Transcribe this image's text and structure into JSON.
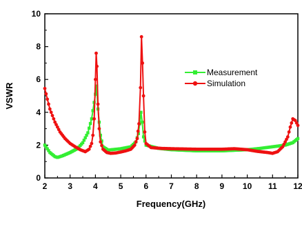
{
  "chart_data": {
    "type": "line",
    "xlabel": "Frequency(GHz)",
    "ylabel": "VSWR",
    "xlim": [
      2,
      12
    ],
    "ylim": [
      0,
      10
    ],
    "x_ticks": [
      2,
      3,
      4,
      5,
      6,
      7,
      8,
      9,
      10,
      11,
      12
    ],
    "y_ticks": [
      0,
      2,
      4,
      6,
      8,
      10
    ],
    "legend_position": "top-right",
    "grid": false,
    "series": [
      {
        "name": "Measurement",
        "color": "#33ee33",
        "marker": "square",
        "x": [
          2.0,
          2.2,
          2.4,
          2.5,
          2.7,
          3.0,
          3.3,
          3.5,
          3.7,
          3.85,
          3.95,
          4.05,
          4.1,
          4.2,
          4.3,
          4.5,
          5.0,
          5.4,
          5.6,
          5.7,
          5.75,
          5.8,
          5.85,
          5.9,
          6.0,
          6.5,
          7.0,
          8.0,
          9.0,
          10.0,
          10.5,
          11.0,
          11.5,
          11.8,
          12.0
        ],
        "y": [
          2.0,
          1.55,
          1.3,
          1.25,
          1.35,
          1.55,
          1.8,
          2.15,
          2.75,
          3.6,
          4.6,
          5.6,
          4.2,
          2.6,
          1.9,
          1.7,
          1.78,
          1.9,
          2.2,
          2.7,
          3.3,
          4.0,
          3.4,
          2.5,
          2.0,
          1.8,
          1.72,
          1.65,
          1.65,
          1.72,
          1.8,
          1.9,
          2.0,
          2.15,
          2.4
        ]
      },
      {
        "name": "Simulation",
        "color": "#ee1111",
        "marker": "circle",
        "x": [
          2.0,
          2.1,
          2.2,
          2.4,
          2.6,
          2.8,
          3.0,
          3.2,
          3.4,
          3.6,
          3.75,
          3.85,
          3.9,
          3.95,
          4.0,
          4.03,
          4.06,
          4.1,
          4.15,
          4.2,
          4.3,
          4.45,
          4.6,
          4.8,
          5.0,
          5.2,
          5.4,
          5.55,
          5.65,
          5.72,
          5.78,
          5.82,
          5.86,
          5.9,
          5.95,
          6.0,
          6.2,
          6.6,
          7.0,
          8.0,
          9.0,
          9.5,
          10.0,
          10.4,
          10.8,
          11.0,
          11.2,
          11.4,
          11.6,
          11.7,
          11.8,
          11.9,
          12.0
        ],
        "y": [
          5.45,
          4.8,
          4.2,
          3.4,
          2.8,
          2.4,
          2.1,
          1.9,
          1.72,
          1.6,
          1.75,
          2.1,
          2.6,
          3.6,
          6.0,
          7.6,
          6.8,
          4.5,
          3.0,
          2.2,
          1.75,
          1.55,
          1.5,
          1.52,
          1.58,
          1.65,
          1.75,
          2.0,
          2.4,
          3.3,
          5.5,
          8.6,
          7.0,
          5.0,
          2.8,
          2.1,
          1.85,
          1.8,
          1.78,
          1.75,
          1.75,
          1.78,
          1.72,
          1.62,
          1.55,
          1.5,
          1.6,
          1.9,
          2.5,
          3.1,
          3.6,
          3.5,
          3.2
        ]
      }
    ]
  }
}
